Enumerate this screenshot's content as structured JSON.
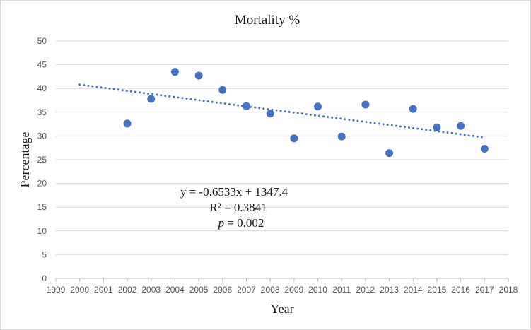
{
  "chart_data": {
    "type": "scatter",
    "title": "Mortality %",
    "xlabel": "Year",
    "ylabel": "Percentage",
    "xlim": [
      1999,
      2018
    ],
    "ylim": [
      0,
      50
    ],
    "x_ticks": [
      1999,
      2000,
      2001,
      2002,
      2003,
      2004,
      2005,
      2006,
      2007,
      2008,
      2009,
      2010,
      2011,
      2012,
      2013,
      2014,
      2015,
      2016,
      2017,
      2018
    ],
    "y_ticks": [
      0,
      5,
      10,
      15,
      20,
      25,
      30,
      35,
      40,
      45,
      50
    ],
    "grid": "horizontal",
    "series": [
      {
        "name": "Mortality %",
        "color": "#4472c4",
        "x": [
          2002,
          2003,
          2004,
          2005,
          2006,
          2007,
          2008,
          2009,
          2010,
          2011,
          2012,
          2013,
          2014,
          2015,
          2016,
          2017
        ],
        "y": [
          32.6,
          37.8,
          43.5,
          42.7,
          39.7,
          36.3,
          34.7,
          29.5,
          36.2,
          29.9,
          36.6,
          26.4,
          35.7,
          31.8,
          32.1,
          27.3
        ]
      }
    ],
    "trendline": {
      "type": "linear",
      "color": "#4472c4",
      "style": "dotted",
      "x_range": [
        2000,
        2017
      ],
      "slope": -0.6533,
      "intercept": 1347.4
    },
    "annotations": {
      "equation": "y = -0.6533x + 1347.4",
      "r_squared": "R² = 0.3841",
      "p_symbol": "p",
      "p_value_text": " = 0.002"
    }
  }
}
